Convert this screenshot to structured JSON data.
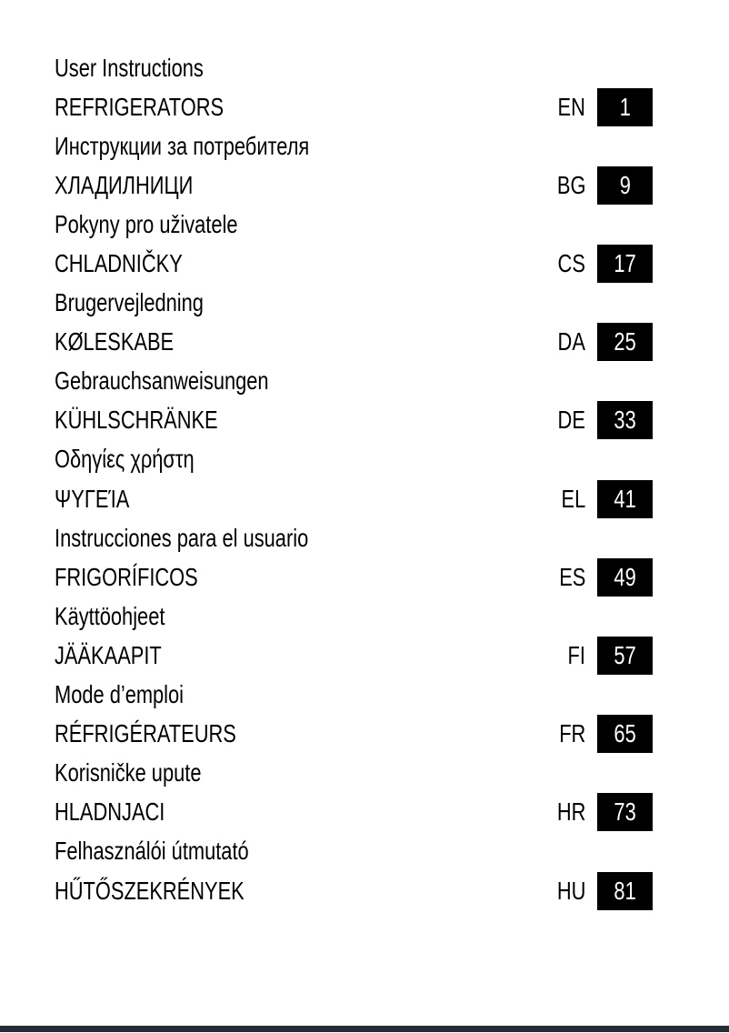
{
  "doc": {
    "kind": "multilingual-contents-page",
    "entries": [
      {
        "title": "User Instructions",
        "product": "REFRIGERATORS",
        "lang": "EN",
        "page": "1"
      },
      {
        "title": "Инструкции за потребителя",
        "product": "ХЛАДИЛНИЦИ",
        "lang": "BG",
        "page": "9"
      },
      {
        "title": "Pokyny pro uživatele",
        "product": "CHLADNIČKY",
        "lang": "CS",
        "page": "17"
      },
      {
        "title": "Brugervejledning",
        "product": "KØLESKABE",
        "lang": "DA",
        "page": "25"
      },
      {
        "title": "Gebrauchsanweisungen",
        "product": "KÜHLSCHRÄNKE",
        "lang": "DE",
        "page": "33"
      },
      {
        "title": "Οδηγίες χρήστη",
        "product": "ΨΥΓΕΊΑ",
        "lang": "EL",
        "page": "41"
      },
      {
        "title": "Instrucciones para el usuario",
        "product": "FRIGORÍFICOS",
        "lang": "ES",
        "page": "49"
      },
      {
        "title": "Käyttöohjeet",
        "product": "JÄÄKAAPIT",
        "lang": "FI",
        "page": "57"
      },
      {
        "title": "Mode d’emploi",
        "product": "RÉFRIGÉRATEURS",
        "lang": "FR",
        "page": "65"
      },
      {
        "title": "Korisničke upute",
        "product": "HLADNJACI",
        "lang": "HR",
        "page": "73"
      },
      {
        "title": "Felhasználói útmutató",
        "product": "HŰTŐSZEKRÉNYEK",
        "lang": "HU",
        "page": "81"
      }
    ],
    "colors": {
      "text": "#000000",
      "badge_background": "#000000",
      "badge_text": "#ffffff",
      "page_background": "#ffffff",
      "footer_bar": "#242b35"
    }
  }
}
